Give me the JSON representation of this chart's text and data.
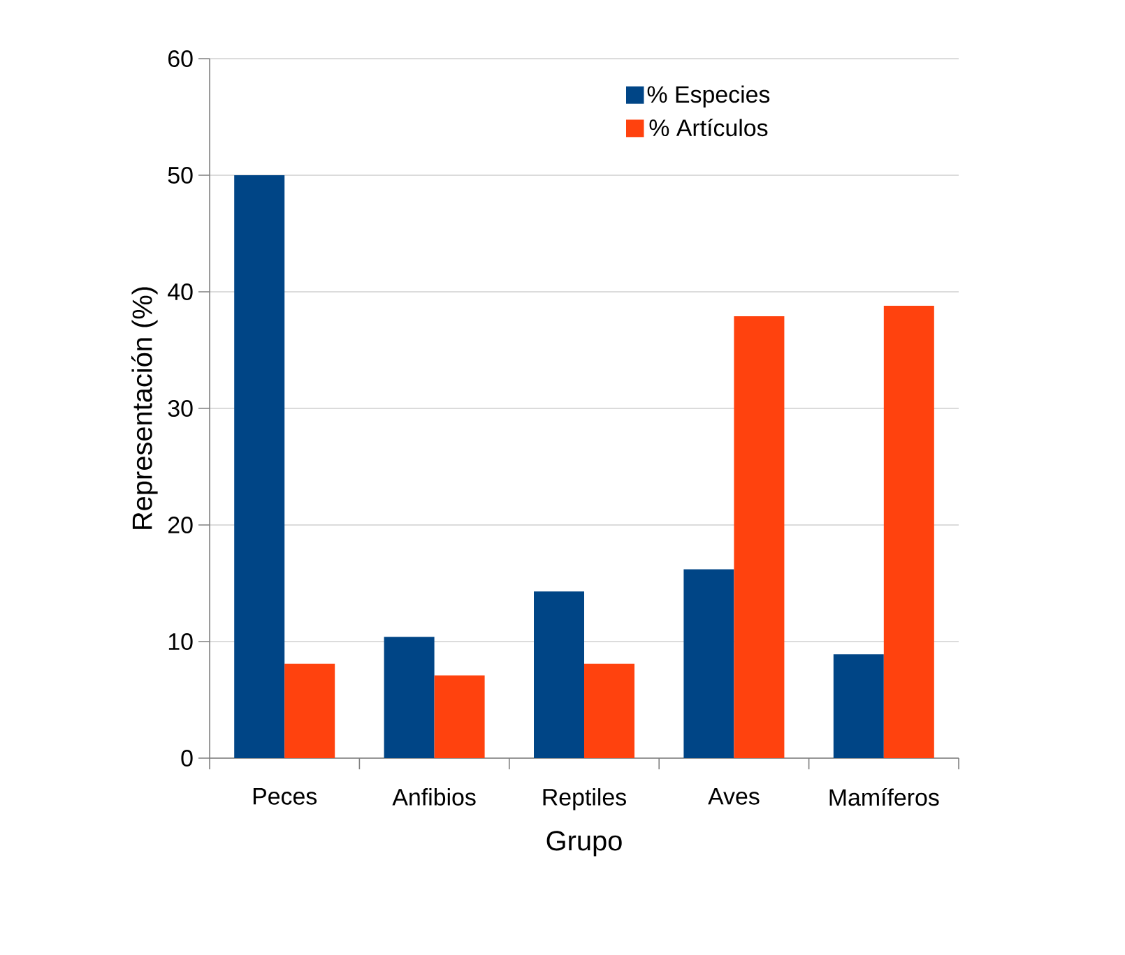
{
  "chart_data": {
    "type": "bar",
    "xlabel": "Grupo",
    "ylabel": "Representación (%)",
    "categories": [
      "Peces",
      "Anfibios",
      "Reptiles",
      "Aves",
      "Mamíferos"
    ],
    "series": [
      {
        "name": "% Especies",
        "color": "#004586",
        "values": [
          50,
          10.4,
          14.3,
          16.2,
          8.9
        ]
      },
      {
        "name": "% Artículos",
        "color": "#ff420e",
        "values": [
          8.1,
          7.1,
          8.1,
          37.9,
          38.8
        ]
      }
    ],
    "ylim": [
      0,
      60
    ],
    "yticks": [
      0,
      10,
      20,
      30,
      40,
      50,
      60
    ],
    "grid": "y",
    "legend": "top right"
  }
}
